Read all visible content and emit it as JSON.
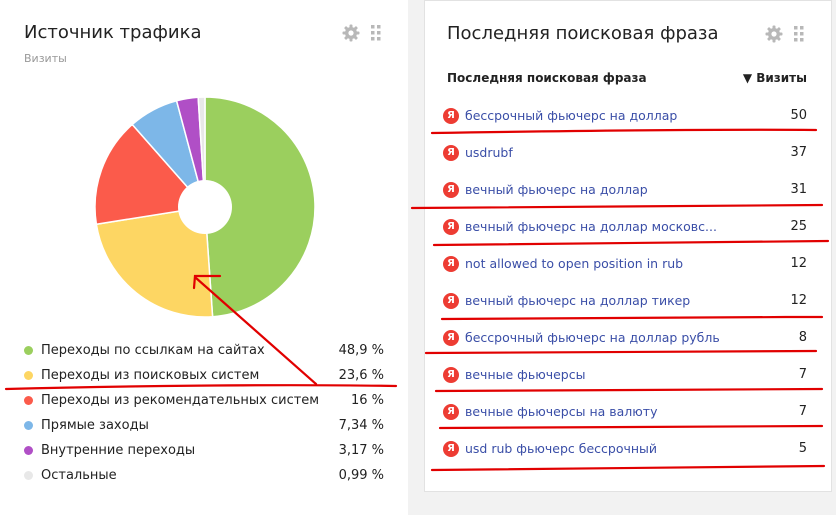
{
  "traffic": {
    "title": "Источник трафика",
    "subtitle": "Визиты",
    "legend": [
      {
        "label": "Переходы по ссылкам на сайтах",
        "pct": "48,9 %",
        "color": "#9bcf5e"
      },
      {
        "label": "Переходы из поисковых систем",
        "pct": "23,6 %",
        "color": "#fdd663"
      },
      {
        "label": "Переходы из рекомендательных систем",
        "pct": "16 %",
        "color": "#fb5b4b"
      },
      {
        "label": "Прямые заходы",
        "pct": "7,34 %",
        "color": "#7db7e8"
      },
      {
        "label": "Внутренние переходы",
        "pct": "3,17 %",
        "color": "#b04fc6"
      },
      {
        "label": "Остальные",
        "pct": "0,99 %",
        "color": "#e8e8e8"
      }
    ]
  },
  "search": {
    "title": "Последняя поисковая фраза",
    "col_phrase": "Последняя поисковая фраза",
    "col_visits": "▼ Визиты",
    "engine_glyph": "Я",
    "rows": [
      {
        "phrase": "бессрочный фьючерс на доллар",
        "visits": "50"
      },
      {
        "phrase": "usdrubf",
        "visits": "37"
      },
      {
        "phrase": "вечный фьючерс на доллар",
        "visits": "31"
      },
      {
        "phrase": "вечный фьючерс на доллар московс...",
        "visits": "25"
      },
      {
        "phrase": "not allowed to open position in rub",
        "visits": "12"
      },
      {
        "phrase": "вечный фьючерс на доллар тикер",
        "visits": "12"
      },
      {
        "phrase": "бессрочный фьючерс на доллар рубль",
        "visits": "8"
      },
      {
        "phrase": "вечные фьючерсы",
        "visits": "7"
      },
      {
        "phrase": "вечные фьючерсы на валюту",
        "visits": "7"
      },
      {
        "phrase": "usd rub фьючерс бессрочный",
        "visits": "5"
      }
    ]
  },
  "chart_data": {
    "type": "pie",
    "categories": [
      "Переходы по ссылкам на сайтах",
      "Переходы из поисковых систем",
      "Переходы из рекомендательных систем",
      "Прямые заходы",
      "Внутренние переходы",
      "Остальные"
    ],
    "values": [
      48.9,
      23.6,
      16,
      7.34,
      3.17,
      0.99
    ],
    "colors": [
      "#9bcf5e",
      "#fdd663",
      "#fb5b4b",
      "#7db7e8",
      "#b04fc6",
      "#e8e8e8"
    ],
    "title": "Источник трафика",
    "legend": "bottom"
  },
  "annotation_color": "#e10000"
}
